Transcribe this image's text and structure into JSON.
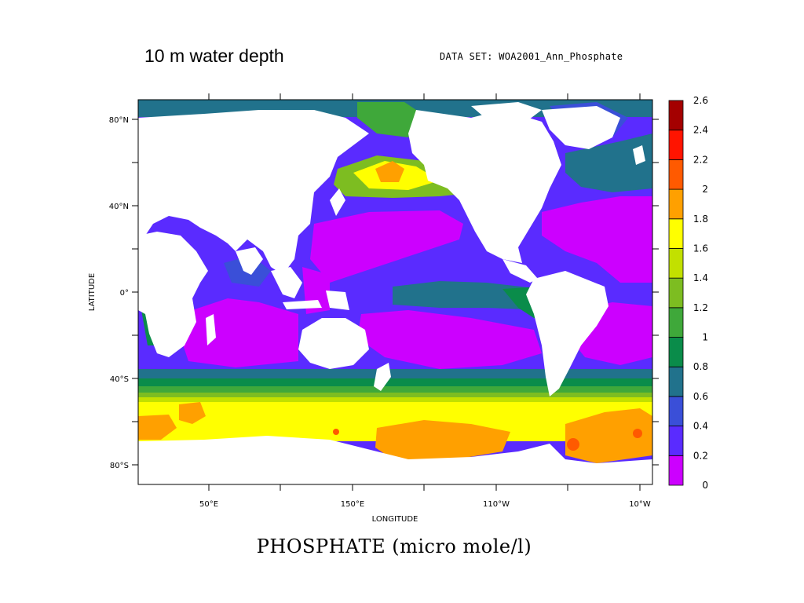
{
  "figure": {
    "title": "10 m water depth",
    "dataset_label": "DATA SET: WOA2001_Ann_Phosphate",
    "caption": "PHOSPHATE (micro mole/l)"
  },
  "chart_data": {
    "type": "heatmap",
    "variable": "Phosphate",
    "units": "micro mole/l",
    "depth": "10 m water depth",
    "xlabel": "LONGITUDE",
    "ylabel": "LATITUDE",
    "x_ticks": [
      "50°E",
      "150°E",
      "110°W",
      "10°W"
    ],
    "y_ticks": [
      "80°N",
      "40°N",
      "0°",
      "40°S",
      "80°S"
    ],
    "x_range_deg": [
      20,
      380
    ],
    "y_range_deg": [
      -90,
      90
    ],
    "colorbar": {
      "levels": [
        0,
        0.2,
        0.4,
        0.6,
        0.8,
        1,
        1.2,
        1.4,
        1.6,
        1.8,
        2,
        2.2,
        2.4,
        2.6
      ],
      "labels": [
        "0",
        "0.2",
        "0.4",
        "0.6",
        "0.8",
        "1",
        "1.2",
        "1.4",
        "1.6",
        "1.8",
        "2",
        "2.2",
        "2.4",
        "2.6"
      ],
      "colors": [
        "#cc00ff",
        "#5a2bff",
        "#3a4fd8",
        "#21728c",
        "#0a8c4a",
        "#3fa83a",
        "#7dbd21",
        "#c2e000",
        "#ffff00",
        "#ffa000",
        "#ff5a00",
        "#ff1400",
        "#a40000"
      ]
    },
    "land_color": "#ffffff"
  }
}
